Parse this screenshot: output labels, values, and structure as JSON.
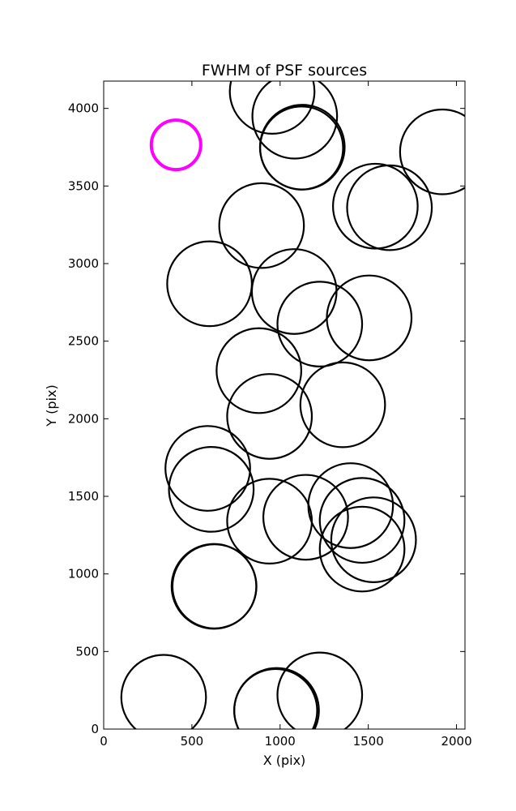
{
  "chart_data": {
    "type": "scatter",
    "title": "FWHM of PSF sources",
    "xlabel": "X (pix)",
    "ylabel": "Y (pix)",
    "xlim": [
      0,
      2048
    ],
    "ylim": [
      0,
      4176
    ],
    "xticks": [
      0,
      500,
      1000,
      1500,
      2000
    ],
    "yticks": [
      0,
      500,
      1000,
      1500,
      2000,
      2500,
      3000,
      3500,
      4000
    ],
    "grid": false,
    "series": [
      {
        "marker": "circle",
        "color": "#000000",
        "points": [
          {
            "x": 955,
            "y": 4110,
            "r": 240
          },
          {
            "x": 1083,
            "y": 3950,
            "r": 240
          },
          {
            "x": 1126,
            "y": 3750,
            "r": 240
          },
          {
            "x": 1122,
            "y": 3745,
            "r": 235
          },
          {
            "x": 1920,
            "y": 3720,
            "r": 240
          },
          {
            "x": 1540,
            "y": 3370,
            "r": 240
          },
          {
            "x": 1620,
            "y": 3360,
            "r": 240
          },
          {
            "x": 895,
            "y": 3245,
            "r": 240
          },
          {
            "x": 600,
            "y": 2870,
            "r": 240
          },
          {
            "x": 1080,
            "y": 2820,
            "r": 240
          },
          {
            "x": 1225,
            "y": 2610,
            "r": 240
          },
          {
            "x": 1505,
            "y": 2650,
            "r": 240
          },
          {
            "x": 880,
            "y": 2310,
            "r": 240
          },
          {
            "x": 940,
            "y": 2015,
            "r": 240
          },
          {
            "x": 1355,
            "y": 2090,
            "r": 240
          },
          {
            "x": 590,
            "y": 1680,
            "r": 240
          },
          {
            "x": 610,
            "y": 1545,
            "r": 240
          },
          {
            "x": 940,
            "y": 1340,
            "r": 240
          },
          {
            "x": 1145,
            "y": 1365,
            "r": 240
          },
          {
            "x": 1400,
            "y": 1440,
            "r": 240
          },
          {
            "x": 1465,
            "y": 1345,
            "r": 240
          },
          {
            "x": 1530,
            "y": 1220,
            "r": 240
          },
          {
            "x": 1465,
            "y": 1160,
            "r": 240
          },
          {
            "x": 625,
            "y": 920,
            "r": 240
          },
          {
            "x": 628,
            "y": 920,
            "r": 238
          },
          {
            "x": 340,
            "y": 205,
            "r": 240
          },
          {
            "x": 980,
            "y": 120,
            "r": 240
          },
          {
            "x": 975,
            "y": 120,
            "r": 235
          },
          {
            "x": 1225,
            "y": 220,
            "r": 240
          }
        ]
      },
      {
        "marker": "circle",
        "color": "#ff00ff",
        "points": [
          {
            "x": 410,
            "y": 3765,
            "r": 140
          }
        ]
      }
    ]
  }
}
